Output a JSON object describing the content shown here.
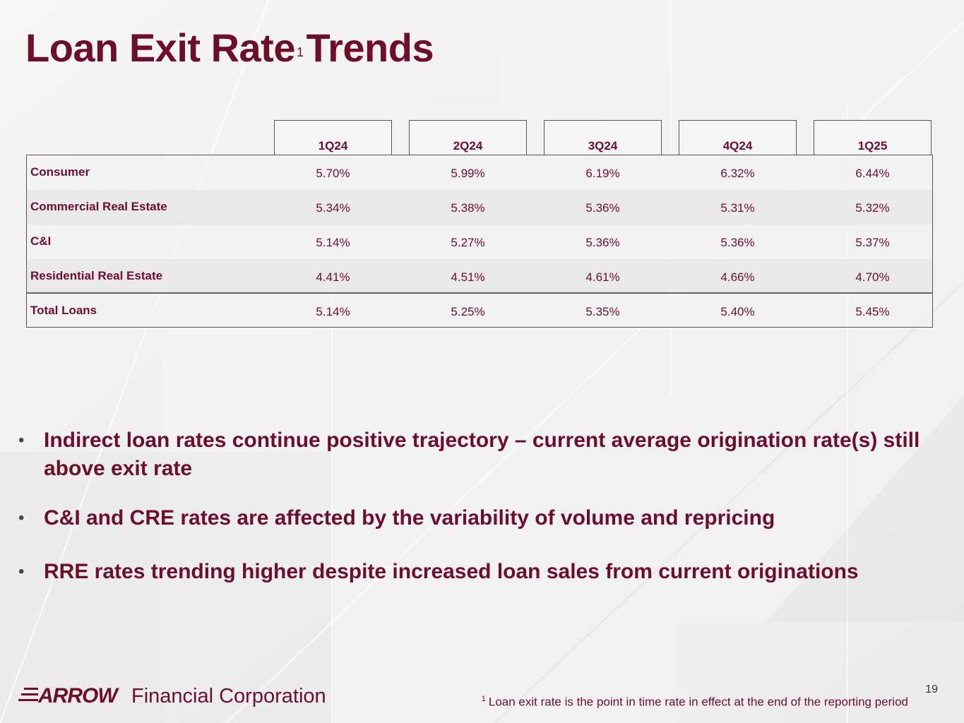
{
  "slide": {
    "title": "Loan Exit Rate",
    "title_superscript": "1",
    "title_suffix": "Trends",
    "page_number": "19"
  },
  "table": {
    "columns": [
      "1Q24",
      "2Q24",
      "3Q24",
      "4Q24",
      "1Q25"
    ],
    "rows": [
      {
        "label": "Consumer",
        "values": [
          "5.70%",
          "5.99%",
          "6.19%",
          "6.32%",
          "6.44%"
        ]
      },
      {
        "label": "Commercial Real Estate",
        "values": [
          "5.34%",
          "5.38%",
          "5.36%",
          "5.31%",
          "5.32%"
        ]
      },
      {
        "label": "C&I",
        "values": [
          "5.14%",
          "5.27%",
          "5.36%",
          "5.36%",
          "5.37%"
        ]
      },
      {
        "label": "Residential Real Estate",
        "values": [
          "4.41%",
          "4.51%",
          "4.61%",
          "4.66%",
          "4.70%"
        ]
      },
      {
        "label": "Total Loans",
        "values": [
          "5.14%",
          "5.25%",
          "5.35%",
          "5.40%",
          "5.45%"
        ]
      }
    ]
  },
  "bullets": [
    "Indirect loan rates continue positive trajectory – current average origination rate(s) still above exit rate",
    "C&I and CRE rates are affected by the variability of volume and repricing",
    "RRE rates trending higher despite increased loan sales from current originations"
  ],
  "bullet_glyph": "•",
  "footer": {
    "logo_word": "ARROW",
    "logo_rest": "Financial Corporation",
    "footnote_marker": "1",
    "footnote_text": "Loan exit rate is the point in time rate in effect at the end of the reporting period"
  },
  "colors": {
    "brand": "#6d0f2b"
  }
}
